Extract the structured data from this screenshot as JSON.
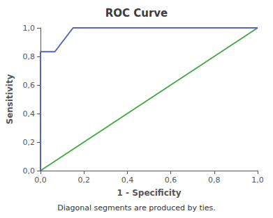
{
  "chart_data": {
    "type": "line",
    "title": "ROC Curve",
    "xlabel": "1 - Specificity",
    "ylabel": "Sensitivity",
    "annotations": [
      "Diagonal segments are produced by ties."
    ],
    "series": [
      {
        "color": "#44aa44",
        "x": [
          0.0,
          1.0
        ],
        "values": [
          0.0,
          1.0
        ]
      },
      {
        "color": "#5566bb",
        "x": [
          0.0,
          0.0,
          0.066,
          0.15,
          1.0
        ],
        "values": [
          0.0,
          0.833,
          0.833,
          1.0,
          1.0
        ]
      }
    ],
    "xlim": [
      0.0,
      1.0
    ],
    "ylim": [
      0.0,
      1.0
    ],
    "xticks": [
      {
        "value": 0.0,
        "label": "0,0"
      },
      {
        "value": 0.2,
        "label": "0,2"
      },
      {
        "value": 0.4,
        "label": "0,4"
      },
      {
        "value": 0.6,
        "label": "0,6"
      },
      {
        "value": 0.8,
        "label": "0,8"
      },
      {
        "value": 1.0,
        "label": "1,0"
      }
    ],
    "yticks": [
      {
        "value": 0.0,
        "label": "0,0"
      },
      {
        "value": 0.2,
        "label": "0,2"
      },
      {
        "value": 0.4,
        "label": "0,4"
      },
      {
        "value": 0.6,
        "label": "0,6"
      },
      {
        "value": 0.8,
        "label": "0,8"
      },
      {
        "value": 1.0,
        "label": "1,0"
      }
    ],
    "grid": false
  }
}
